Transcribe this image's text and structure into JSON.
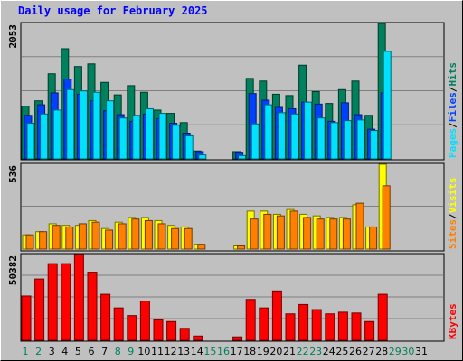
{
  "title": "Daily usage for February 2025",
  "colors": {
    "background": "#c0c0c0",
    "plot_bg": "#c0c0c0",
    "hits": "#00805c",
    "files": "#0040ff",
    "pages": "#00e0ff",
    "visits": "#ffff00",
    "sites": "#ff8000",
    "kbytes": "#ff0000",
    "weekend_label": "#00805c",
    "weekday_label": "#000000",
    "title": "#0000ff"
  },
  "chart_data": [
    {
      "type": "bar",
      "id": "hits",
      "ymax_label": "2053",
      "ylim": [
        0,
        2053
      ],
      "legend": [
        {
          "text": "Pages",
          "color": "#00e0ff"
        },
        {
          "text": "/",
          "color": "#000000"
        },
        {
          "text": "Files",
          "color": "#0040ff"
        },
        {
          "text": "/",
          "color": "#000000"
        },
        {
          "text": "Hits",
          "color": "#00805c"
        }
      ],
      "categories": [
        "1",
        "2",
        "3",
        "4",
        "5",
        "6",
        "7",
        "8",
        "9",
        "10",
        "11",
        "12",
        "13",
        "14",
        "15",
        "16",
        "17",
        "18",
        "19",
        "20",
        "21",
        "22",
        "23",
        "24",
        "25",
        "26",
        "27",
        "28"
      ],
      "series": [
        {
          "name": "Hits",
          "values": [
            800,
            880,
            1290,
            1670,
            1400,
            1440,
            1160,
            970,
            1110,
            1010,
            740,
            690,
            550,
            120,
            0,
            0,
            110,
            1220,
            1180,
            980,
            960,
            1420,
            1020,
            840,
            1050,
            1180,
            660,
            2053
          ]
        },
        {
          "name": "Files",
          "values": [
            660,
            820,
            1000,
            1210,
            980,
            880,
            730,
            670,
            570,
            680,
            610,
            540,
            390,
            110,
            0,
            0,
            100,
            990,
            890,
            780,
            760,
            860,
            830,
            570,
            850,
            670,
            450,
            1000
          ]
        },
        {
          "name": "Pages",
          "values": [
            540,
            680,
            740,
            1050,
            1030,
            1010,
            880,
            620,
            660,
            760,
            690,
            510,
            350,
            60,
            0,
            0,
            50,
            530,
            820,
            700,
            680,
            860,
            620,
            550,
            580,
            590,
            430,
            1630
          ]
        }
      ]
    },
    {
      "type": "bar",
      "id": "visits",
      "ymax_label": "536",
      "ylim": [
        0,
        536
      ],
      "legend": [
        {
          "text": "Sites",
          "color": "#ff8000"
        },
        {
          "text": "/",
          "color": "#000000"
        },
        {
          "text": "Visits",
          "color": "#ffff00"
        }
      ],
      "categories": [
        "1",
        "2",
        "3",
        "4",
        "5",
        "6",
        "7",
        "8",
        "9",
        "10",
        "11",
        "12",
        "13",
        "14",
        "15",
        "16",
        "17",
        "18",
        "19",
        "20",
        "21",
        "22",
        "23",
        "24",
        "25",
        "26",
        "27",
        "28"
      ],
      "series": [
        {
          "name": "Visits",
          "values": [
            90,
            110,
            160,
            150,
            150,
            180,
            130,
            170,
            200,
            200,
            180,
            150,
            140,
            30,
            0,
            0,
            20,
            240,
            240,
            220,
            250,
            220,
            210,
            200,
            200,
            280,
            140,
            536
          ]
        },
        {
          "name": "Sites",
          "values": [
            90,
            110,
            150,
            140,
            160,
            170,
            120,
            160,
            190,
            180,
            160,
            130,
            130,
            30,
            0,
            0,
            20,
            190,
            220,
            210,
            240,
            200,
            190,
            190,
            190,
            290,
            140,
            400
          ]
        }
      ]
    },
    {
      "type": "bar",
      "id": "kbytes",
      "ymax_label": "50382",
      "ylim": [
        0,
        50382
      ],
      "legend": [
        {
          "text": "KBytes",
          "color": "#ff0000"
        }
      ],
      "categories": [
        "1",
        "2",
        "3",
        "4",
        "5",
        "6",
        "7",
        "8",
        "9",
        "10",
        "11",
        "12",
        "13",
        "14",
        "15",
        "16",
        "17",
        "18",
        "19",
        "20",
        "21",
        "22",
        "23",
        "24",
        "25",
        "26",
        "27",
        "28"
      ],
      "series": [
        {
          "name": "KBytes",
          "values": [
            26000,
            36000,
            45000,
            45000,
            50382,
            40000,
            27000,
            19000,
            14500,
            23000,
            12000,
            11000,
            7000,
            2500,
            0,
            0,
            2000,
            24000,
            19000,
            29000,
            15500,
            21000,
            18000,
            15500,
            16500,
            16000,
            11000,
            27000
          ]
        }
      ]
    }
  ],
  "x_labels": [
    "1",
    "2",
    "3",
    "4",
    "5",
    "6",
    "7",
    "8",
    "9",
    "10",
    "11",
    "12",
    "13",
    "14",
    "15",
    "16",
    "17",
    "18",
    "19",
    "20",
    "21",
    "22",
    "23",
    "24",
    "25",
    "26",
    "27",
    "28",
    "29",
    "30",
    "31"
  ],
  "weekend_days": [
    "1",
    "2",
    "8",
    "9",
    "15",
    "16",
    "22",
    "23",
    "29",
    "30"
  ],
  "trailing_days": [
    "29",
    "30",
    "31"
  ]
}
